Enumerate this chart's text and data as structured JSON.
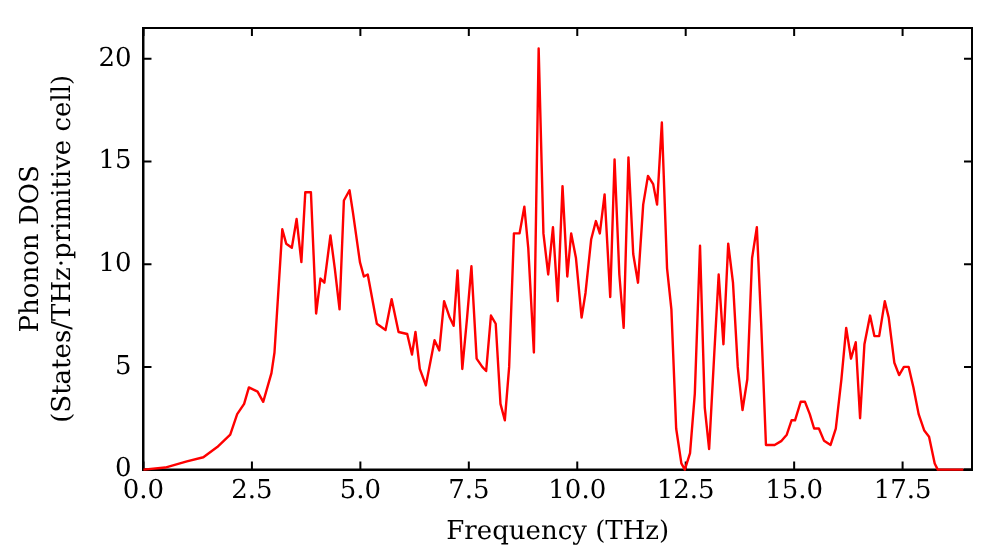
{
  "chart_data": {
    "type": "line",
    "xlabel": "Frequency (THz)",
    "ylabel": "Phonon DOS\n(States/THz·primitive cell)",
    "xlim": [
      0,
      19.1
    ],
    "ylim": [
      0,
      21.5
    ],
    "xticks": [
      {
        "value": 0,
        "label": "0.0"
      },
      {
        "value": 2.5,
        "label": "2.5"
      },
      {
        "value": 5,
        "label": "5.0"
      },
      {
        "value": 7.5,
        "label": "7.5"
      },
      {
        "value": 10,
        "label": "10.0"
      },
      {
        "value": 12.5,
        "label": "12.5"
      },
      {
        "value": 15,
        "label": "15.0"
      },
      {
        "value": 17.5,
        "label": "17.5"
      }
    ],
    "yticks": [
      0,
      5,
      10,
      15,
      20
    ],
    "grid": false,
    "legend": false,
    "marker": "none",
    "line_style": "solid",
    "series": [
      {
        "color": "#ff0000",
        "x": [
          0,
          0.5,
          1.0,
          1.38,
          1.7,
          2.0,
          2.16,
          2.32,
          2.43,
          2.63,
          2.76,
          2.95,
          3.02,
          3.2,
          3.29,
          3.42,
          3.53,
          3.64,
          3.73,
          3.86,
          3.98,
          4.08,
          4.17,
          4.31,
          4.41,
          4.52,
          4.62,
          4.75,
          4.83,
          4.99,
          5.08,
          5.17,
          5.38,
          5.58,
          5.72,
          5.88,
          6.08,
          6.19,
          6.27,
          6.37,
          6.51,
          6.71,
          6.82,
          6.93,
          7.06,
          7.15,
          7.24,
          7.35,
          7.46,
          7.56,
          7.68,
          7.81,
          7.9,
          8.01,
          8.12,
          8.23,
          8.33,
          8.43,
          8.54,
          8.67,
          8.78,
          8.87,
          9.0,
          9.11,
          9.22,
          9.33,
          9.44,
          9.55,
          9.66,
          9.77,
          9.86,
          9.97,
          10.1,
          10.19,
          10.32,
          10.43,
          10.52,
          10.63,
          10.76,
          10.86,
          10.97,
          11.07,
          11.18,
          11.29,
          11.4,
          11.52,
          11.63,
          11.75,
          11.84,
          11.95,
          12.07,
          12.17,
          12.28,
          12.4,
          12.48,
          12.6,
          12.71,
          12.83,
          12.94,
          13.04,
          13.16,
          13.26,
          13.37,
          13.48,
          13.59,
          13.7,
          13.81,
          13.92,
          14.03,
          14.14,
          14.24,
          14.35,
          14.55,
          14.71,
          14.83,
          14.94,
          15.02,
          15.15,
          15.25,
          15.36,
          15.46,
          15.57,
          15.69,
          15.84,
          15.96,
          16.09,
          16.2,
          16.31,
          16.42,
          16.52,
          16.62,
          16.75,
          16.85,
          16.96,
          17.09,
          17.18,
          17.31,
          17.42,
          17.53,
          17.64,
          17.75,
          17.87,
          18.0,
          18.11,
          18.24,
          18.31,
          18.9
        ],
        "values": [
          0,
          0.1,
          0.4,
          0.6,
          1.1,
          1.7,
          2.7,
          3.2,
          4.0,
          3.8,
          3.3,
          4.7,
          5.7,
          11.7,
          11.0,
          10.8,
          12.2,
          10.1,
          13.5,
          13.5,
          7.6,
          9.3,
          9.1,
          11.4,
          9.8,
          7.8,
          13.1,
          13.6,
          12.5,
          10.1,
          9.4,
          9.5,
          7.1,
          6.8,
          8.3,
          6.7,
          6.6,
          5.6,
          6.7,
          4.9,
          4.1,
          6.3,
          5.8,
          8.2,
          7.4,
          7.0,
          9.7,
          4.9,
          7.4,
          9.9,
          5.4,
          5.0,
          4.8,
          7.5,
          7.1,
          3.2,
          2.4,
          5.0,
          11.5,
          11.5,
          12.8,
          10.8,
          5.7,
          20.5,
          11.5,
          9.5,
          11.8,
          8.2,
          13.8,
          9.4,
          11.5,
          10.3,
          7.4,
          8.6,
          11.2,
          12.1,
          11.5,
          13.4,
          8.4,
          15.1,
          9.5,
          6.9,
          15.2,
          10.5,
          9.1,
          12.9,
          14.3,
          13.9,
          12.9,
          16.9,
          9.8,
          7.8,
          2.0,
          0.3,
          0,
          0.8,
          3.7,
          10.9,
          3.0,
          1.0,
          5.7,
          9.5,
          6.1,
          11.0,
          9.1,
          5.0,
          2.9,
          4.4,
          10.3,
          11.8,
          7.1,
          1.2,
          1.2,
          1.4,
          1.7,
          2.4,
          2.4,
          3.3,
          3.3,
          2.7,
          2.0,
          2.0,
          1.4,
          1.2,
          2.0,
          4.4,
          6.9,
          5.4,
          6.2,
          2.5,
          6.1,
          7.5,
          6.5,
          6.5,
          8.2,
          7.4,
          5.2,
          4.6,
          5.0,
          5.0,
          4.0,
          2.7,
          1.9,
          1.6,
          0.3,
          0,
          0
        ]
      }
    ]
  }
}
